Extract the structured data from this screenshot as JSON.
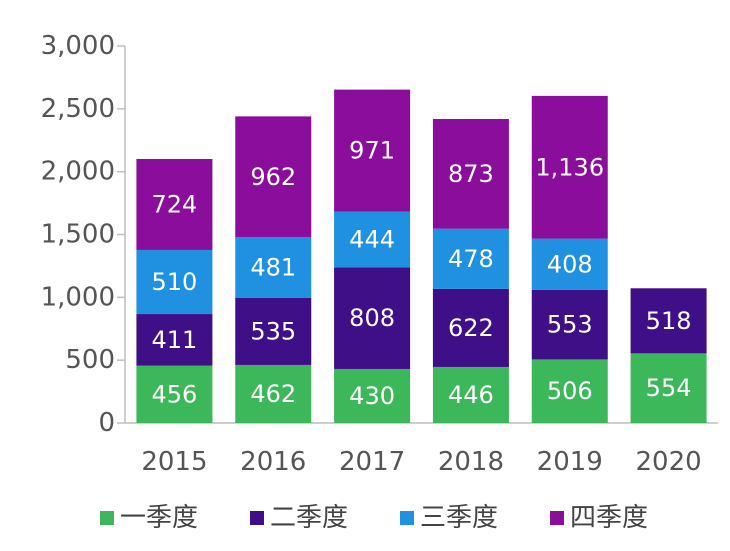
{
  "chart_data": {
    "type": "bar",
    "stacked": true,
    "categories": [
      "2015",
      "2016",
      "2017",
      "2018",
      "2019",
      "2020"
    ],
    "series": [
      {
        "name": "一季度",
        "color": "#3cb75a",
        "values": [
          456,
          462,
          430,
          446,
          506,
          554
        ],
        "labels": [
          "456",
          "462",
          "430",
          "446",
          "506",
          "554"
        ]
      },
      {
        "name": "二季度",
        "color": "#3f0f87",
        "values": [
          411,
          535,
          808,
          622,
          553,
          518
        ],
        "labels": [
          "411",
          "535",
          "808",
          "622",
          "553",
          "518"
        ]
      },
      {
        "name": "三季度",
        "color": "#2090e0",
        "values": [
          510,
          481,
          444,
          478,
          408,
          null
        ],
        "labels": [
          "510",
          "481",
          "444",
          "478",
          "408",
          ""
        ]
      },
      {
        "name": "四季度",
        "color": "#8a0d9c",
        "values": [
          724,
          962,
          971,
          873,
          1136,
          null
        ],
        "labels": [
          "724",
          "962",
          "971",
          "873",
          "1,136",
          ""
        ]
      }
    ],
    "yticks": [
      "0",
      "500",
      "1,000",
      "1,500",
      "2,000",
      "2,500",
      "3,000"
    ],
    "ylim": [
      0,
      3000
    ],
    "grid": false,
    "legend_position": "bottom"
  }
}
